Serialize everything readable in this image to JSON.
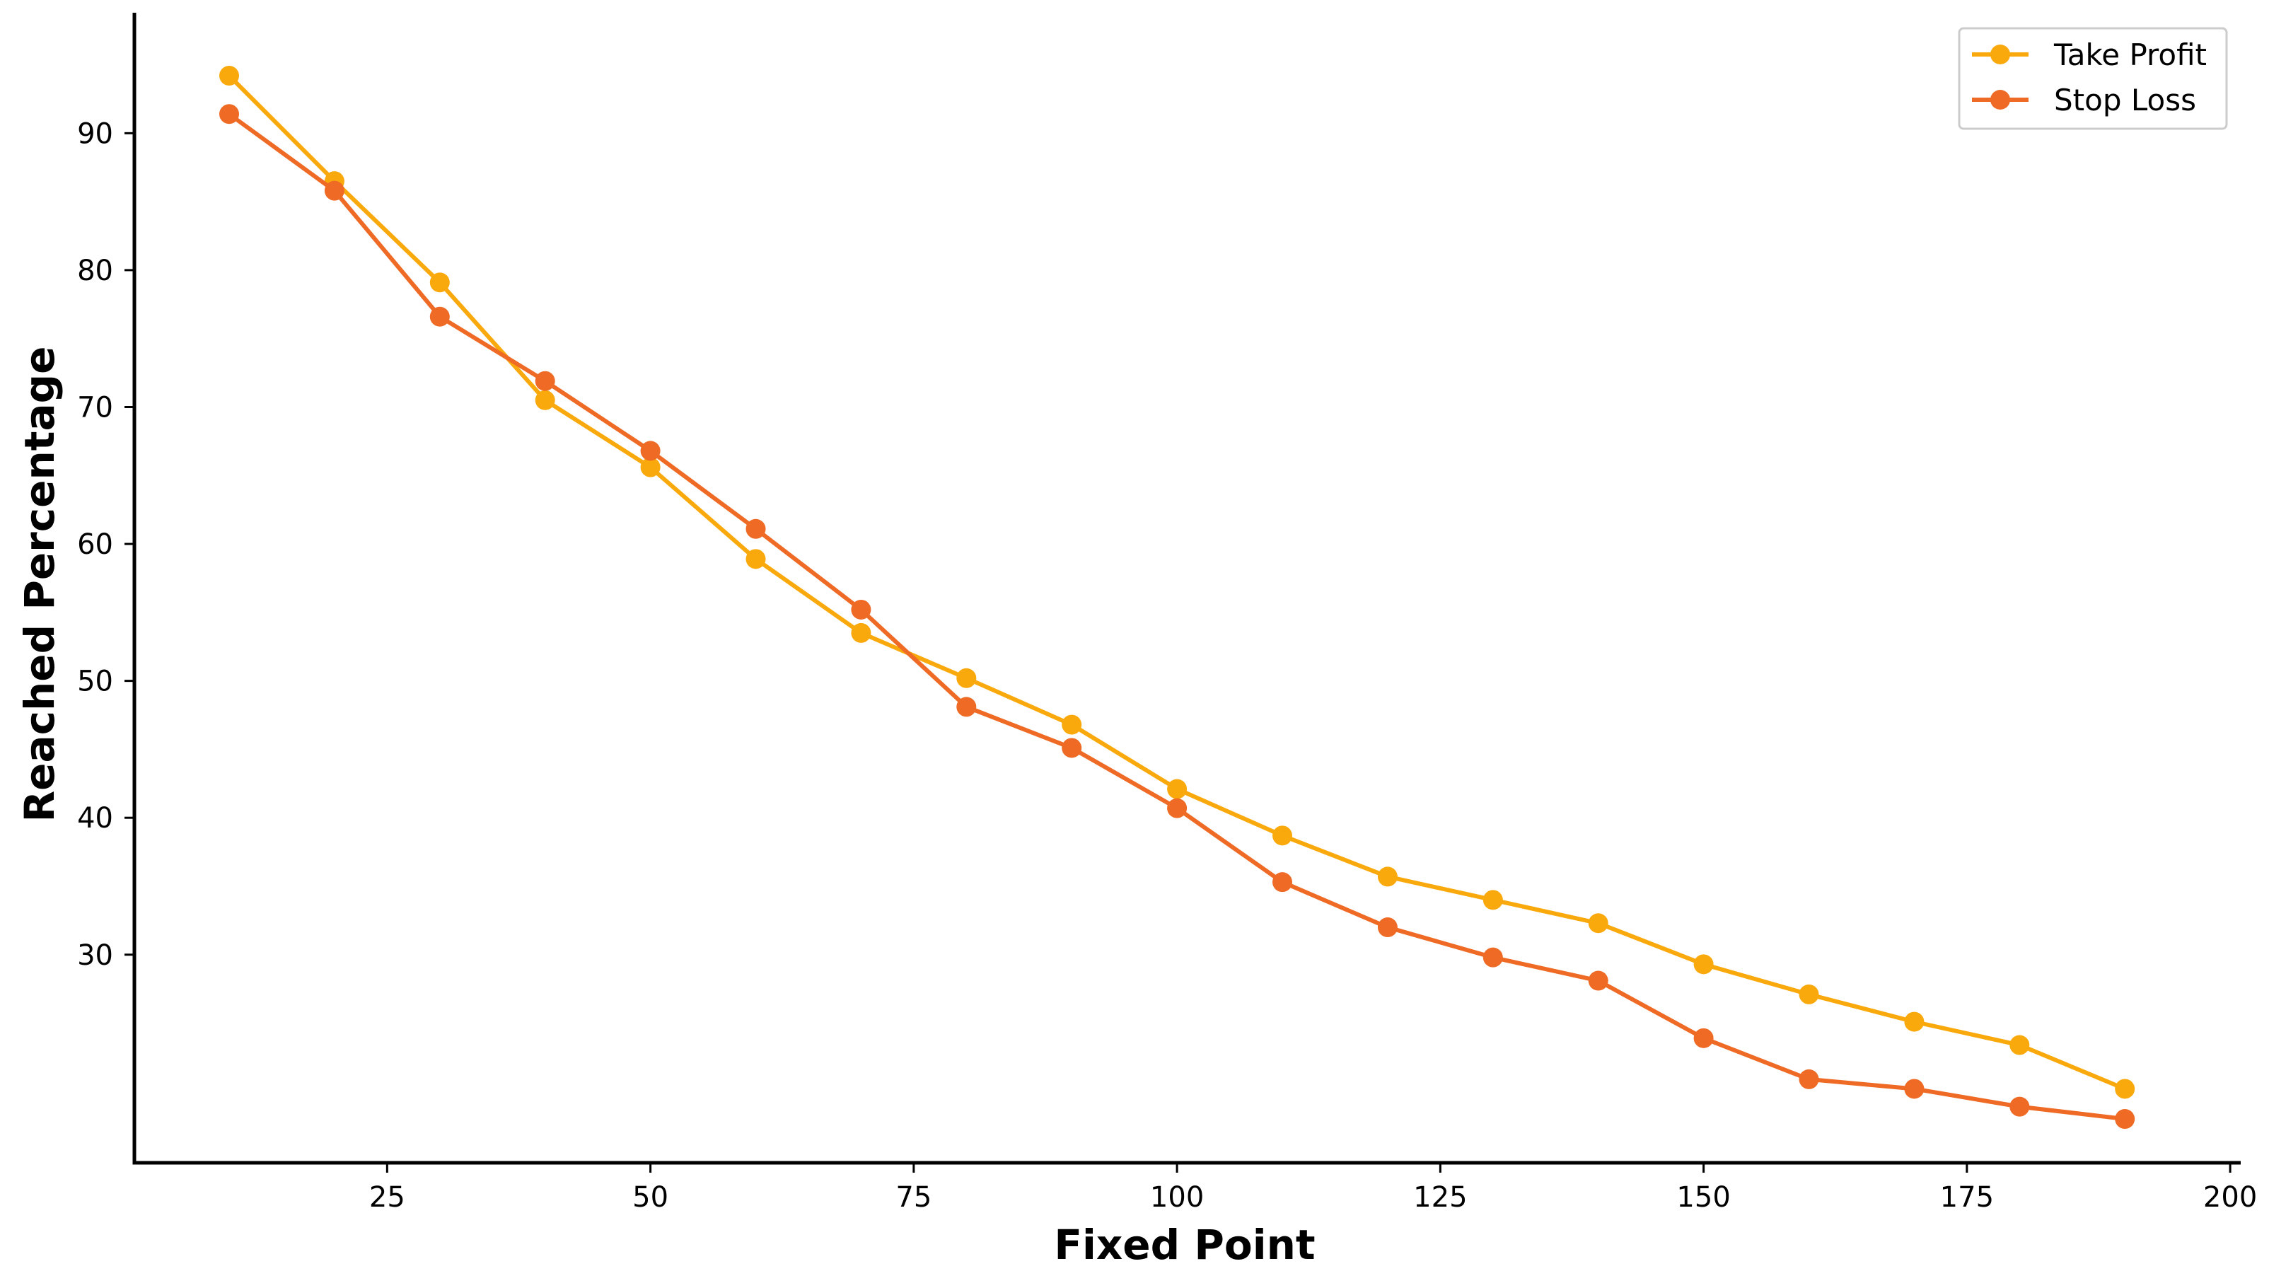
{
  "chart_data": {
    "type": "line",
    "title": "",
    "xlabel": "Fixed Point",
    "ylabel": "Reached Percentage",
    "xlim": [
      1,
      201
    ],
    "ylim": [
      14.8,
      98.8
    ],
    "xticks": [
      25,
      50,
      75,
      100,
      125,
      150,
      175,
      200
    ],
    "yticks": [
      30,
      40,
      50,
      60,
      70,
      80,
      90
    ],
    "grid": false,
    "legend_position": "top-right",
    "x": [
      10,
      20,
      30,
      40,
      50,
      60,
      70,
      80,
      90,
      100,
      110,
      120,
      130,
      140,
      150,
      160,
      170,
      180,
      190
    ],
    "series": [
      {
        "name": "Take Profit",
        "color": "#F9A90C",
        "values": [
          94.2,
          86.5,
          79.1,
          70.5,
          65.6,
          58.9,
          53.5,
          50.2,
          46.8,
          42.1,
          38.7,
          35.7,
          34.0,
          32.3,
          29.3,
          27.1,
          25.1,
          23.4,
          20.2
        ]
      },
      {
        "name": "Stop Loss",
        "color": "#EE6A25",
        "values": [
          91.4,
          85.8,
          76.6,
          71.9,
          66.8,
          61.1,
          55.2,
          48.1,
          45.1,
          40.7,
          35.3,
          32.0,
          29.8,
          28.1,
          23.9,
          20.9,
          20.2,
          18.9,
          18.0
        ]
      }
    ]
  }
}
